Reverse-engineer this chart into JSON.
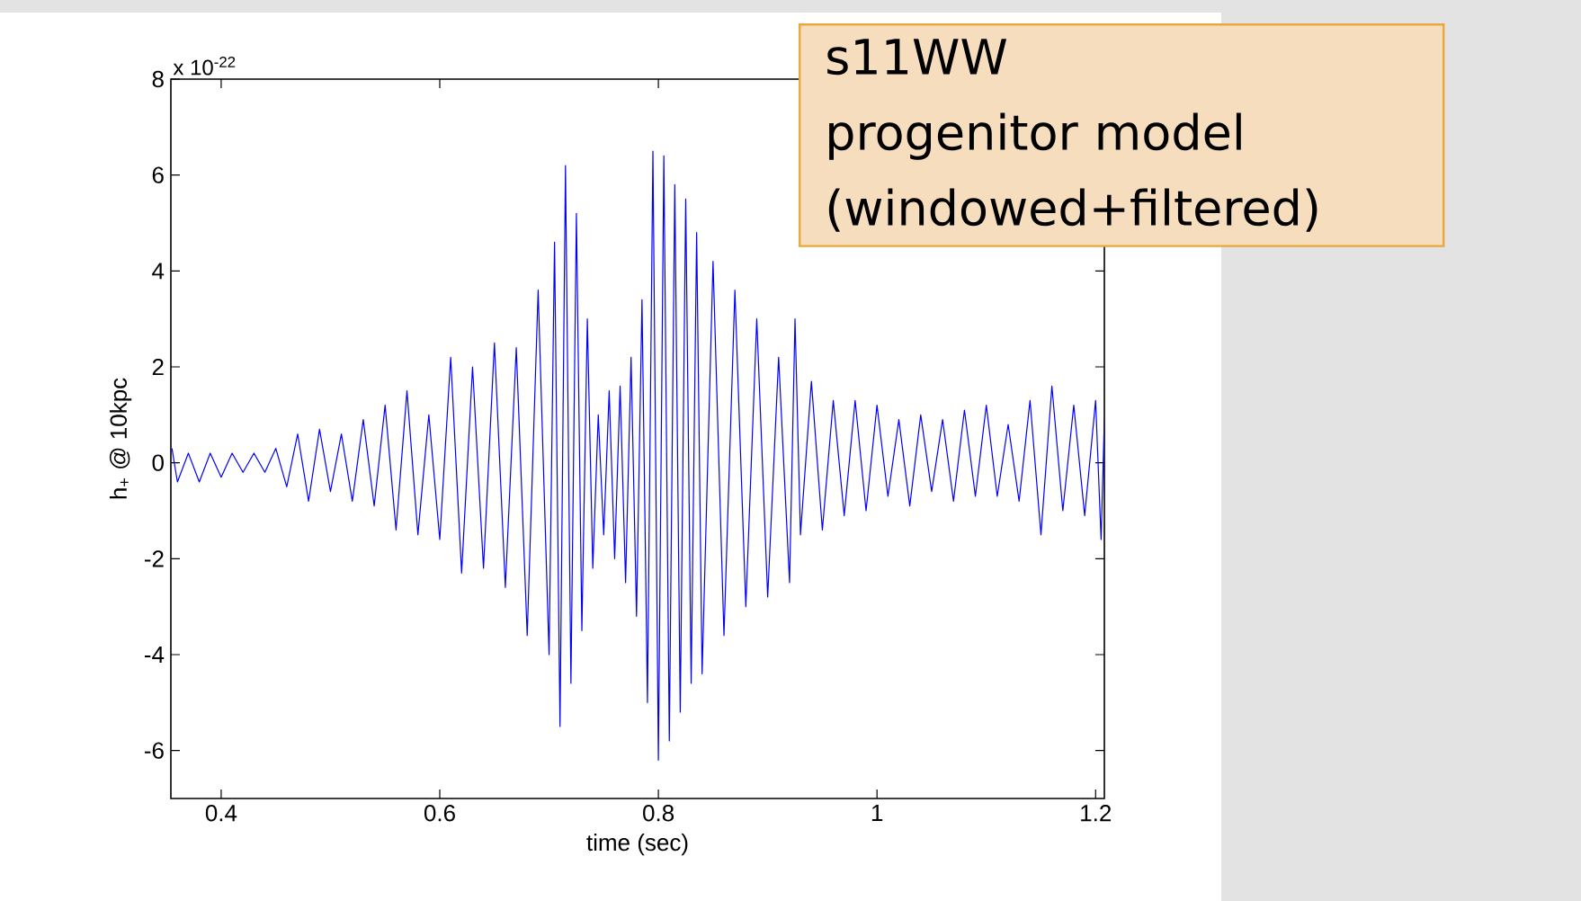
{
  "chart_data": {
    "type": "line",
    "xlabel": "time (sec)",
    "ylabel": "h$_{+}$ @ 10kpc",
    "annotations": [
      "x 10$^{-22}$",
      "s11WW progenitor model (windowed+filtered)"
    ],
    "xlim": [
      0.354,
      1.208
    ],
    "ylim": [
      -7,
      8
    ],
    "xticks": [
      0.4,
      0.6,
      0.8,
      1,
      1.2
    ],
    "yticks": [
      -6,
      -4,
      -2,
      0,
      2,
      4,
      6,
      8
    ],
    "grid": false,
    "marker": "none",
    "line_style": "solid",
    "series": [
      {
        "color": "#0000ff",
        "x": [
          0.355,
          0.36,
          0.37,
          0.38,
          0.39,
          0.4,
          0.41,
          0.42,
          0.43,
          0.44,
          0.45,
          0.46,
          0.47,
          0.48,
          0.49,
          0.5,
          0.51,
          0.52,
          0.53,
          0.54,
          0.55,
          0.56,
          0.57,
          0.58,
          0.59,
          0.6,
          0.61,
          0.62,
          0.63,
          0.64,
          0.65,
          0.66,
          0.67,
          0.68,
          0.69,
          0.7,
          0.705,
          0.71,
          0.715,
          0.72,
          0.725,
          0.73,
          0.735,
          0.74,
          0.745,
          0.75,
          0.755,
          0.76,
          0.765,
          0.77,
          0.775,
          0.78,
          0.785,
          0.79,
          0.795,
          0.8,
          0.805,
          0.81,
          0.815,
          0.82,
          0.825,
          0.83,
          0.835,
          0.84,
          0.85,
          0.86,
          0.87,
          0.88,
          0.89,
          0.9,
          0.91,
          0.92,
          0.925,
          0.93,
          0.94,
          0.95,
          0.96,
          0.97,
          0.98,
          0.99,
          1.0,
          1.01,
          1.02,
          1.03,
          1.04,
          1.05,
          1.06,
          1.07,
          1.08,
          1.09,
          1.1,
          1.11,
          1.12,
          1.13,
          1.14,
          1.15,
          1.16,
          1.17,
          1.18,
          1.19,
          1.2,
          1.205,
          1.208
        ],
        "values": [
          0.3,
          -0.4,
          0.2,
          -0.4,
          0.2,
          -0.3,
          0.2,
          -0.2,
          0.2,
          -0.2,
          0.3,
          -0.5,
          0.6,
          -0.8,
          0.7,
          -0.6,
          0.6,
          -0.8,
          0.9,
          -0.9,
          1.2,
          -1.4,
          1.5,
          -1.5,
          1.0,
          -1.6,
          2.2,
          -2.3,
          2.0,
          -2.2,
          2.5,
          -2.6,
          2.4,
          -3.6,
          3.6,
          -4.0,
          4.6,
          -5.5,
          6.2,
          -4.6,
          5.2,
          -3.5,
          3.0,
          -2.2,
          1.0,
          -1.5,
          1.5,
          -2.0,
          1.6,
          -2.5,
          2.2,
          -3.2,
          3.4,
          -5.0,
          6.5,
          -6.2,
          6.4,
          -5.8,
          5.8,
          -5.2,
          5.5,
          -4.6,
          4.8,
          -4.4,
          4.2,
          -3.6,
          3.6,
          -3.0,
          3.0,
          -2.8,
          2.2,
          -2.5,
          3.0,
          -1.5,
          1.7,
          -1.4,
          1.3,
          -1.1,
          1.3,
          -1.0,
          1.2,
          -0.7,
          0.9,
          -0.9,
          1.0,
          -0.6,
          0.9,
          -0.8,
          1.1,
          -0.7,
          1.2,
          -0.7,
          0.8,
          -0.8,
          1.3,
          -1.5,
          1.6,
          -1.0,
          1.2,
          -1.1,
          1.3,
          -1.6,
          0.9
        ]
      }
    ]
  }
}
